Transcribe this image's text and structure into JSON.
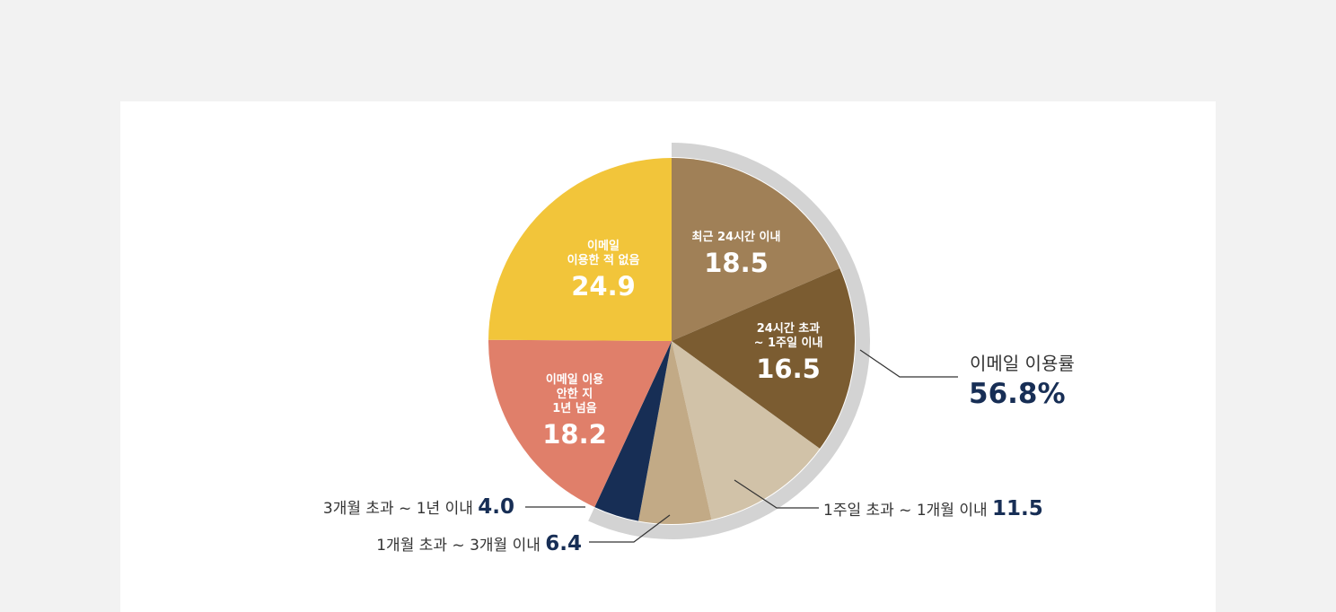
{
  "chart_data": {
    "type": "pie",
    "slices": [
      {
        "label_lines": [
          "최근 24시간 이내"
        ],
        "value": 18.5,
        "color": "#a08057"
      },
      {
        "label_lines": [
          "24시간 초과",
          "~ 1주일 이내"
        ],
        "value": 16.5,
        "color": "#7b5c31"
      },
      {
        "label": "1주일 초과 ~ 1개월 이내",
        "value": 11.5,
        "color": "#d1c2a8"
      },
      {
        "label": "1개월 초과 ~ 3개월 이내",
        "value": 6.4,
        "color": "#c2aa86"
      },
      {
        "label": "3개월 초과 ~ 1년 이내",
        "value": 4.0,
        "color": "#172e55"
      },
      {
        "label_lines": [
          "이메일 이용",
          "안한 지",
          "1년 넘음"
        ],
        "value": 18.2,
        "color": "#e07f6a"
      },
      {
        "label_lines": [
          "이메일",
          "이용한 적 없음"
        ],
        "value": 24.9,
        "color": "#f2c53a"
      }
    ],
    "highlight": {
      "label": "이메일 이용률",
      "value": "56.8%",
      "color": "#d3d3d3"
    }
  }
}
